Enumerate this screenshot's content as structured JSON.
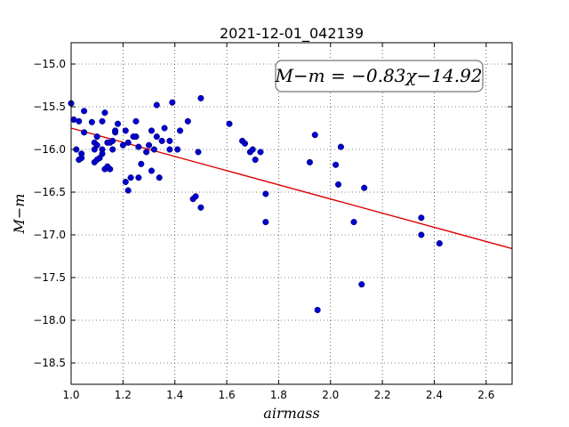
{
  "chart_data": {
    "type": "scatter",
    "title": "2021-12-01_042139",
    "xlabel": "airmass",
    "ylabel": "M−m",
    "xlim": [
      1.0,
      2.7
    ],
    "ylim": [
      -18.75,
      -14.75
    ],
    "y_inverted": true,
    "grid": true,
    "x_ticks": [
      "1.0",
      "1.2",
      "1.4",
      "1.6",
      "1.8",
      "2.0",
      "2.2",
      "2.4",
      "2.6"
    ],
    "y_ticks": [
      "−15.0",
      "−15.5",
      "−16.0",
      "−16.5",
      "−17.0",
      "−17.5",
      "−18.0",
      "−18.5"
    ],
    "x_tick_values": [
      1.0,
      1.2,
      1.4,
      1.6,
      1.8,
      2.0,
      2.2,
      2.4,
      2.6
    ],
    "y_tick_values": [
      -15.0,
      -15.5,
      -16.0,
      -16.5,
      -17.0,
      -17.5,
      -18.0,
      -18.5
    ],
    "annotation": "M−m = −0.83χ−14.92",
    "fit": {
      "slope": -0.83,
      "intercept": -14.92,
      "color": "#dd0000"
    },
    "point_color": "#0000cc",
    "points": [
      [
        1.0,
        -15.46
      ],
      [
        1.01,
        -15.65
      ],
      [
        1.03,
        -15.67
      ],
      [
        1.02,
        -16.0
      ],
      [
        1.03,
        -16.12
      ],
      [
        1.04,
        -16.1
      ],
      [
        1.04,
        -16.05
      ],
      [
        1.05,
        -15.55
      ],
      [
        1.05,
        -15.8
      ],
      [
        1.08,
        -15.68
      ],
      [
        1.09,
        -15.92
      ],
      [
        1.09,
        -16.0
      ],
      [
        1.09,
        -16.15
      ],
      [
        1.1,
        -15.85
      ],
      [
        1.1,
        -15.95
      ],
      [
        1.1,
        -16.12
      ],
      [
        1.11,
        -16.1
      ],
      [
        1.12,
        -16.0
      ],
      [
        1.12,
        -16.05
      ],
      [
        1.12,
        -15.67
      ],
      [
        1.13,
        -15.57
      ],
      [
        1.13,
        -16.23
      ],
      [
        1.14,
        -15.92
      ],
      [
        1.14,
        -16.2
      ],
      [
        1.15,
        -16.23
      ],
      [
        1.15,
        -15.92
      ],
      [
        1.16,
        -16.0
      ],
      [
        1.16,
        -15.9
      ],
      [
        1.17,
        -15.8
      ],
      [
        1.17,
        -15.78
      ],
      [
        1.18,
        -15.7
      ],
      [
        1.2,
        -15.95
      ],
      [
        1.21,
        -15.78
      ],
      [
        1.21,
        -16.38
      ],
      [
        1.22,
        -16.48
      ],
      [
        1.22,
        -15.92
      ],
      [
        1.23,
        -16.33
      ],
      [
        1.24,
        -15.85
      ],
      [
        1.25,
        -15.67
      ],
      [
        1.25,
        -15.85
      ],
      [
        1.26,
        -15.97
      ],
      [
        1.26,
        -16.33
      ],
      [
        1.27,
        -16.17
      ],
      [
        1.29,
        -16.03
      ],
      [
        1.3,
        -15.95
      ],
      [
        1.31,
        -15.78
      ],
      [
        1.31,
        -16.25
      ],
      [
        1.32,
        -16.0
      ],
      [
        1.33,
        -15.48
      ],
      [
        1.33,
        -15.85
      ],
      [
        1.34,
        -16.33
      ],
      [
        1.35,
        -15.9
      ],
      [
        1.36,
        -15.75
      ],
      [
        1.38,
        -15.9
      ],
      [
        1.38,
        -16.0
      ],
      [
        1.39,
        -15.45
      ],
      [
        1.41,
        -16.0
      ],
      [
        1.42,
        -15.78
      ],
      [
        1.45,
        -15.67
      ],
      [
        1.47,
        -16.58
      ],
      [
        1.48,
        -16.55
      ],
      [
        1.49,
        -16.03
      ],
      [
        1.5,
        -16.68
      ],
      [
        1.5,
        -15.4
      ],
      [
        1.61,
        -15.7
      ],
      [
        1.66,
        -15.9
      ],
      [
        1.67,
        -15.93
      ],
      [
        1.69,
        -16.03
      ],
      [
        1.7,
        -16.0
      ],
      [
        1.71,
        -16.12
      ],
      [
        1.73,
        -16.03
      ],
      [
        1.75,
        -16.52
      ],
      [
        1.75,
        -16.85
      ],
      [
        1.92,
        -16.15
      ],
      [
        1.94,
        -15.83
      ],
      [
        1.95,
        -17.88
      ],
      [
        2.02,
        -16.18
      ],
      [
        2.03,
        -16.41
      ],
      [
        2.04,
        -15.97
      ],
      [
        2.09,
        -16.85
      ],
      [
        2.12,
        -17.58
      ],
      [
        2.13,
        -16.45
      ],
      [
        2.35,
        -16.8
      ],
      [
        2.35,
        -17.0
      ],
      [
        2.42,
        -17.1
      ]
    ]
  }
}
